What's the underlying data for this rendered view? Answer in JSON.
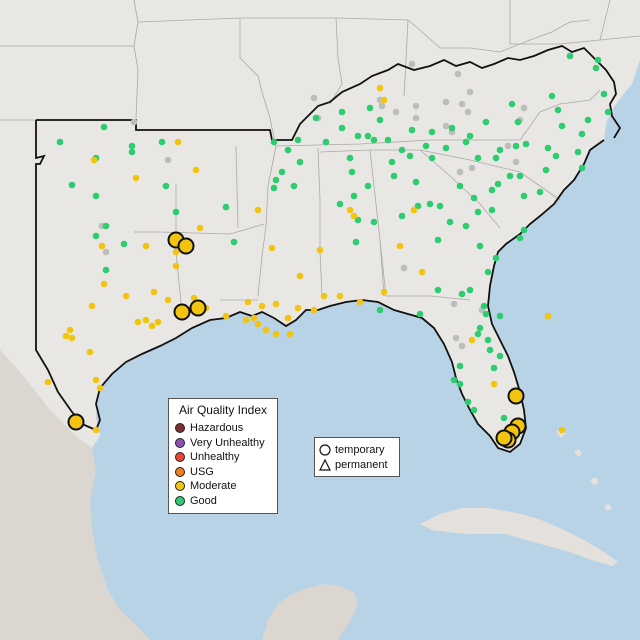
{
  "legend": {
    "title": "Air Quality Index",
    "categories": [
      {
        "label": "Hazardous",
        "color": "#7e2f2f"
      },
      {
        "label": "Very Unhealthy",
        "color": "#8e4fb3"
      },
      {
        "label": "Unhealthy",
        "color": "#e8472f"
      },
      {
        "label": "USG",
        "color": "#ee7e1e"
      },
      {
        "label": "Moderate",
        "color": "#f2c40f"
      },
      {
        "label": "Good",
        "color": "#2ecc71"
      }
    ]
  },
  "shape_legend": {
    "items": [
      {
        "label": "temporary",
        "shape": "circle-icon"
      },
      {
        "label": "permanent",
        "shape": "triangle-icon"
      }
    ]
  },
  "colors": {
    "water": "#b9d3e6",
    "land": "#e9e7e3",
    "mexico_land": "#dcd6d0",
    "state_border": "#a9a9a9",
    "region_border": "#111111",
    "no_data": "#bdbdbd"
  },
  "monitors": {
    "good": [
      [
        60,
        142
      ],
      [
        104,
        127
      ],
      [
        132,
        146
      ],
      [
        132,
        152
      ],
      [
        96,
        158
      ],
      [
        72,
        185
      ],
      [
        96,
        196
      ],
      [
        106,
        226
      ],
      [
        124,
        244
      ],
      [
        96,
        236
      ],
      [
        106,
        270
      ],
      [
        162,
        142
      ],
      [
        166,
        186
      ],
      [
        176,
        212
      ],
      [
        226,
        207
      ],
      [
        198,
        305
      ],
      [
        234,
        242
      ],
      [
        274,
        142
      ],
      [
        288,
        150
      ],
      [
        300,
        162
      ],
      [
        282,
        172
      ],
      [
        276,
        180
      ],
      [
        274,
        188
      ],
      [
        294,
        186
      ],
      [
        298,
        140
      ],
      [
        316,
        118
      ],
      [
        326,
        142
      ],
      [
        342,
        128
      ],
      [
        358,
        136
      ],
      [
        368,
        136
      ],
      [
        374,
        140
      ],
      [
        350,
        158
      ],
      [
        352,
        172
      ],
      [
        368,
        186
      ],
      [
        354,
        196
      ],
      [
        340,
        204
      ],
      [
        358,
        220
      ],
      [
        374,
        222
      ],
      [
        356,
        242
      ],
      [
        392,
        162
      ],
      [
        402,
        150
      ],
      [
        410,
        156
      ],
      [
        426,
        146
      ],
      [
        432,
        158
      ],
      [
        446,
        148
      ],
      [
        466,
        142
      ],
      [
        470,
        136
      ],
      [
        478,
        158
      ],
      [
        496,
        158
      ],
      [
        500,
        150
      ],
      [
        516,
        146
      ],
      [
        526,
        144
      ],
      [
        548,
        148
      ],
      [
        556,
        156
      ],
      [
        578,
        152
      ],
      [
        582,
        134
      ],
      [
        588,
        120
      ],
      [
        608,
        112
      ],
      [
        604,
        94
      ],
      [
        596,
        68
      ],
      [
        598,
        60
      ],
      [
        570,
        56
      ],
      [
        552,
        96
      ],
      [
        558,
        110
      ],
      [
        562,
        126
      ],
      [
        512,
        104
      ],
      [
        518,
        122
      ],
      [
        486,
        122
      ],
      [
        452,
        128
      ],
      [
        432,
        132
      ],
      [
        412,
        130
      ],
      [
        388,
        140
      ],
      [
        370,
        108
      ],
      [
        380,
        120
      ],
      [
        342,
        112
      ],
      [
        394,
        176
      ],
      [
        416,
        182
      ],
      [
        418,
        206
      ],
      [
        402,
        216
      ],
      [
        430,
        204
      ],
      [
        440,
        206
      ],
      [
        450,
        222
      ],
      [
        466,
        226
      ],
      [
        478,
        212
      ],
      [
        492,
        210
      ],
      [
        498,
        184
      ],
      [
        510,
        176
      ],
      [
        520,
        176
      ],
      [
        524,
        196
      ],
      [
        540,
        192
      ],
      [
        546,
        170
      ],
      [
        582,
        168
      ],
      [
        492,
        190
      ],
      [
        460,
        186
      ],
      [
        474,
        198
      ],
      [
        438,
        240
      ],
      [
        480,
        246
      ],
      [
        520,
        238
      ],
      [
        524,
        230
      ],
      [
        488,
        272
      ],
      [
        496,
        258
      ],
      [
        462,
        294
      ],
      [
        470,
        290
      ],
      [
        484,
        306
      ],
      [
        486,
        314
      ],
      [
        480,
        328
      ],
      [
        500,
        316
      ],
      [
        478,
        334
      ],
      [
        488,
        340
      ],
      [
        490,
        350
      ],
      [
        500,
        356
      ],
      [
        494,
        368
      ],
      [
        460,
        366
      ],
      [
        454,
        380
      ],
      [
        460,
        384
      ],
      [
        468,
        402
      ],
      [
        474,
        410
      ],
      [
        504,
        418
      ],
      [
        438,
        290
      ],
      [
        420,
        314
      ],
      [
        380,
        310
      ]
    ],
    "moderate": [
      [
        178,
        142
      ],
      [
        94,
        160
      ],
      [
        136,
        178
      ],
      [
        196,
        170
      ],
      [
        200,
        228
      ],
      [
        178,
        240
      ],
      [
        146,
        246
      ],
      [
        102,
        246
      ],
      [
        92,
        306
      ],
      [
        104,
        284
      ],
      [
        126,
        296
      ],
      [
        154,
        292
      ],
      [
        176,
        252
      ],
      [
        176,
        266
      ],
      [
        194,
        298
      ],
      [
        226,
        316
      ],
      [
        248,
        302
      ],
      [
        262,
        306
      ],
      [
        276,
        304
      ],
      [
        298,
        308
      ],
      [
        314,
        310
      ],
      [
        324,
        296
      ],
      [
        340,
        296
      ],
      [
        360,
        302
      ],
      [
        384,
        292
      ],
      [
        300,
        276
      ],
      [
        320,
        250
      ],
      [
        272,
        248
      ],
      [
        258,
        210
      ],
      [
        168,
        300
      ],
      [
        146,
        320
      ],
      [
        138,
        322
      ],
      [
        152,
        326
      ],
      [
        158,
        322
      ],
      [
        70,
        330
      ],
      [
        66,
        336
      ],
      [
        72,
        338
      ],
      [
        90,
        352
      ],
      [
        96,
        380
      ],
      [
        100,
        388
      ],
      [
        48,
        382
      ],
      [
        96,
        430
      ],
      [
        380,
        88
      ],
      [
        384,
        100
      ],
      [
        350,
        210
      ],
      [
        354,
        216
      ],
      [
        414,
        210
      ],
      [
        400,
        246
      ],
      [
        422,
        272
      ],
      [
        472,
        340
      ],
      [
        494,
        384
      ],
      [
        548,
        316
      ],
      [
        562,
        430
      ],
      [
        258,
        324
      ],
      [
        288,
        318
      ],
      [
        290,
        334
      ],
      [
        266,
        330
      ],
      [
        276,
        334
      ],
      [
        246,
        320
      ],
      [
        254,
        318
      ],
      [
        206,
        308
      ]
    ],
    "no_data": [
      [
        134,
        122
      ],
      [
        168,
        160
      ],
      [
        102,
        226
      ],
      [
        106,
        252
      ],
      [
        380,
        100
      ],
      [
        382,
        106
      ],
      [
        412,
        64
      ],
      [
        458,
        74
      ],
      [
        446,
        102
      ],
      [
        416,
        106
      ],
      [
        416,
        118
      ],
      [
        396,
        112
      ],
      [
        462,
        104
      ],
      [
        468,
        112
      ],
      [
        446,
        126
      ],
      [
        452,
        132
      ],
      [
        508,
        146
      ],
      [
        516,
        162
      ],
      [
        472,
        168
      ],
      [
        460,
        172
      ],
      [
        520,
        120
      ],
      [
        524,
        108
      ],
      [
        470,
        92
      ],
      [
        314,
        98
      ],
      [
        318,
        118
      ],
      [
        404,
        268
      ],
      [
        454,
        304
      ],
      [
        482,
        310
      ],
      [
        456,
        338
      ],
      [
        462,
        346
      ]
    ],
    "moderate_large": [
      [
        176,
        240
      ],
      [
        186,
        246
      ],
      [
        182,
        312
      ],
      [
        198,
        308
      ],
      [
        76,
        422
      ],
      [
        516,
        396
      ],
      [
        518,
        426
      ],
      [
        512,
        432
      ],
      [
        508,
        440
      ],
      [
        504,
        438
      ]
    ]
  }
}
